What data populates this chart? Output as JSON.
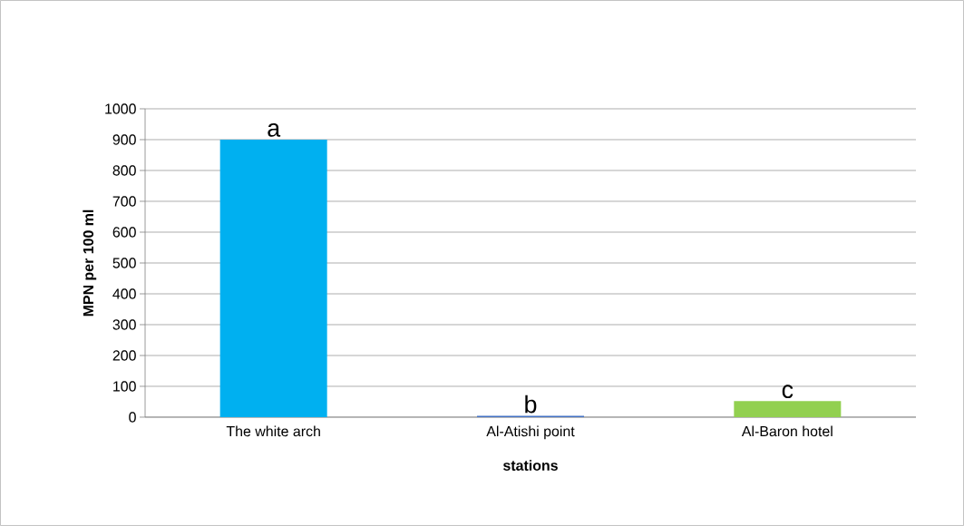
{
  "chart_data": {
    "type": "bar",
    "xlabel": "stations",
    "ylabel": "MPN per 100 ml",
    "categories": [
      "The white arch",
      "Al-Atishi point",
      "Al-Baron hotel"
    ],
    "values": [
      900,
      4,
      52
    ],
    "colors": [
      "#00b0f0",
      "#4472c4",
      "#92d050"
    ],
    "ylim": [
      0,
      1000
    ],
    "yticks": [
      0,
      100,
      200,
      300,
      400,
      500,
      600,
      700,
      800,
      900,
      1000
    ],
    "grid": "y",
    "annotations": [
      {
        "text": "a",
        "x": "The white arch",
        "y": 900
      },
      {
        "text": "b",
        "x": "Al-Atishi point",
        "y": 4
      },
      {
        "text": "c",
        "x": "Al-Baron hotel",
        "y": 52
      }
    ]
  }
}
